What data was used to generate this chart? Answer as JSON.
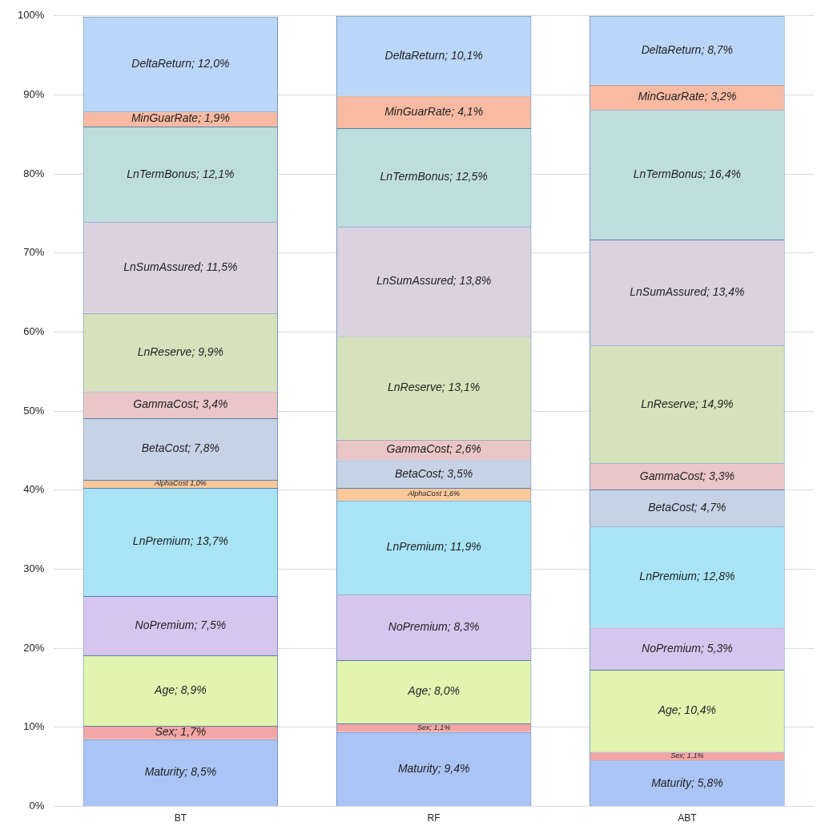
{
  "chart_data": {
    "type": "bar",
    "stacked": true,
    "categories": [
      "BT",
      "RF",
      "ABT"
    ],
    "ylim": [
      0,
      100
    ],
    "yticks": [
      {
        "value": 0,
        "label": "0%"
      },
      {
        "value": 10,
        "label": "10%"
      },
      {
        "value": 20,
        "label": "20%"
      },
      {
        "value": 30,
        "label": "30%"
      },
      {
        "value": 40,
        "label": "40%"
      },
      {
        "value": 50,
        "label": "50%"
      },
      {
        "value": 60,
        "label": "60%"
      },
      {
        "value": 70,
        "label": "70%"
      },
      {
        "value": 80,
        "label": "80%"
      },
      {
        "value": 90,
        "label": "90%"
      },
      {
        "value": 100,
        "label": "100%"
      }
    ],
    "grid": "y",
    "legend": false,
    "series": [
      {
        "name": "Maturity",
        "color": "#a9c4f5",
        "values": [
          8.5,
          9.4,
          5.8
        ],
        "value_labels": [
          "; 8,5%",
          "; 9,4%",
          "; 5,8%"
        ]
      },
      {
        "name": "Sex",
        "color": "#f4a6a6",
        "values": [
          1.7,
          1.1,
          1.1
        ],
        "value_labels": [
          "; 1,7%",
          "; 1,1%",
          "; 1,1%"
        ]
      },
      {
        "name": "Age",
        "color": "#e2f5b0",
        "values": [
          8.9,
          8.0,
          10.4
        ],
        "value_labels": [
          "; 8,9%",
          "; 8,0%",
          "; 10,4%"
        ]
      },
      {
        "name": "NoPremium",
        "color": "#d6c6ee",
        "values": [
          7.5,
          8.3,
          5.3
        ],
        "value_labels": [
          "; 7,5%",
          "; 8,3%",
          "; 5,3%"
        ]
      },
      {
        "name": "LnPremium",
        "color": "#a8e4f6",
        "values": [
          13.7,
          11.9,
          12.8
        ],
        "value_labels": [
          "; 13,7%",
          "; 11,9%",
          "; 12,8%"
        ]
      },
      {
        "name": "AlphaCost",
        "color": "#fbc89a",
        "values": [
          1.0,
          1.6,
          null
        ],
        "value_labels": [
          "1,0%",
          "1,6%",
          null
        ]
      },
      {
        "name": "BetaCost",
        "color": "#c6d2e6",
        "values": [
          7.8,
          3.5,
          4.7
        ],
        "value_labels": [
          "; 7,8%",
          "; 3,5%",
          "; 4,7%"
        ]
      },
      {
        "name": "GammaCost",
        "color": "#eac6c6",
        "values": [
          3.4,
          2.6,
          3.3
        ],
        "value_labels": [
          "; 3,4%",
          "; 2,6%",
          "; 3,3%"
        ]
      },
      {
        "name": "LnReserve",
        "color": "#d6e2bc",
        "values": [
          9.9,
          13.1,
          14.9
        ],
        "value_labels": [
          "; 9,9%",
          "; 13,1%",
          "; 14,9%"
        ]
      },
      {
        "name": "LnSumAssured",
        "color": "#dad2de",
        "values": [
          11.5,
          13.8,
          13.4
        ],
        "value_labels": [
          "; 11,5%",
          "; 13,8%",
          "; 13,4%"
        ]
      },
      {
        "name": "LnTermBonus",
        "color": "#bedede",
        "values": [
          12.1,
          12.5,
          16.4
        ],
        "value_labels": [
          "; 12,1%",
          "; 12,5%",
          "; 16,4%"
        ]
      },
      {
        "name": "MinGuarRate",
        "color": "#f8baa2",
        "values": [
          1.9,
          4.1,
          3.2
        ],
        "value_labels": [
          "; 1,9%",
          "; 4,1%",
          "; 3,2%"
        ]
      },
      {
        "name": "DeltaReturn",
        "color": "#bad6f8",
        "values": [
          12.0,
          10.1,
          8.7
        ],
        "value_labels": [
          "; 12,0%",
          "; 10,1%",
          "; 8,7%"
        ]
      }
    ]
  }
}
